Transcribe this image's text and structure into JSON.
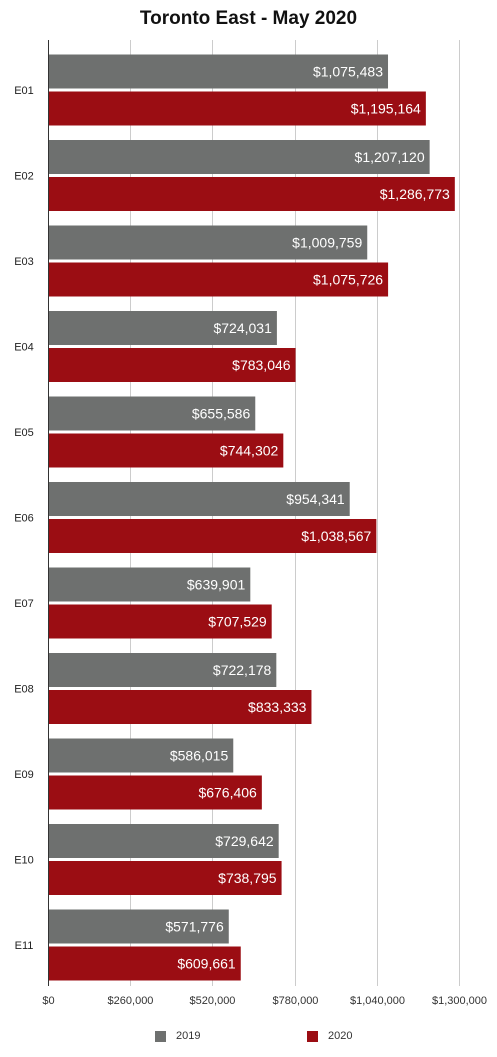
{
  "chart_data": {
    "type": "bar",
    "orientation": "horizontal",
    "title": "Toronto East - May 2020",
    "categories": [
      "E01",
      "E02",
      "E03",
      "E04",
      "E05",
      "E06",
      "E07",
      "E08",
      "E09",
      "E10",
      "E11"
    ],
    "series": [
      {
        "name": "2019",
        "color": "#6e706f",
        "values": [
          1075483,
          1207120,
          1009759,
          724031,
          655586,
          954341,
          639901,
          722178,
          586015,
          729642,
          571776
        ],
        "labels": [
          "$1,075,483",
          "$1,207,120",
          "$1,009,759",
          "$724,031",
          "$655,586",
          "$954,341",
          "$639,901",
          "$722,178",
          "$586,015",
          "$729,642",
          "$571,776"
        ]
      },
      {
        "name": "2020",
        "color": "#9b0d13",
        "values": [
          1195164,
          1286773,
          1075726,
          783046,
          744302,
          1038567,
          707529,
          833333,
          676406,
          738795,
          609661
        ],
        "labels": [
          "$1,195,164",
          "$1,286,773",
          "$1,075,726",
          "$783,046",
          "$744,302",
          "$1,038,567",
          "$707,529",
          "$833,333",
          "$676,406",
          "$738,795",
          "$609,661"
        ]
      }
    ],
    "x_axis": {
      "range": [
        0,
        1300000
      ],
      "ticks": [
        0,
        260000,
        520000,
        780000,
        1040000,
        1300000
      ],
      "tick_labels": [
        "$0",
        "$260,000",
        "$520,000",
        "$780,000",
        "$1,040,000",
        "$1,300,000"
      ]
    },
    "grid": true,
    "legend_position": "bottom"
  }
}
